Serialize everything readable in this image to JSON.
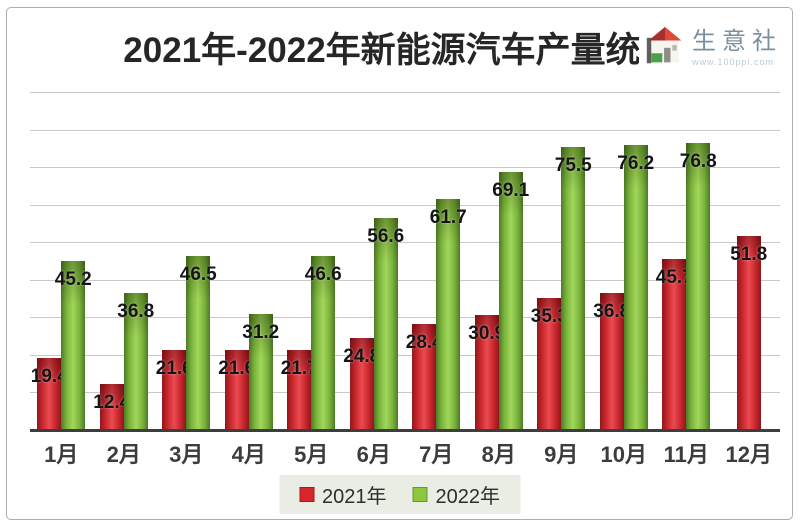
{
  "header": {
    "title": "2021年-2022年新能源汽车产量统计"
  },
  "logo": {
    "name": "生意社",
    "tagline": "www.100ppi.com"
  },
  "legend": {
    "items": [
      {
        "label": "2021年",
        "color": "#d8262c"
      },
      {
        "label": "2022年",
        "color": "#8dc63f"
      }
    ]
  },
  "chart_data": {
    "type": "bar",
    "title": "2021年-2022年新能源汽车产量统计",
    "categories": [
      "1月",
      "2月",
      "3月",
      "4月",
      "5月",
      "6月",
      "7月",
      "8月",
      "9月",
      "10月",
      "11月",
      "12月"
    ],
    "series": [
      {
        "name": "2021年",
        "color": "#d8262c",
        "values": [
          19.4,
          12.4,
          21.6,
          21.6,
          21.7,
          24.8,
          28.4,
          30.9,
          35.3,
          36.8,
          45.7,
          51.8
        ]
      },
      {
        "name": "2022年",
        "color": "#8dc63f",
        "values": [
          45.2,
          36.8,
          46.5,
          31.2,
          46.6,
          56.6,
          61.7,
          69.1,
          75.5,
          76.2,
          76.8,
          null
        ]
      }
    ],
    "xlabel": "",
    "ylabel": "",
    "ylim": [
      0,
      90
    ],
    "grid_step": 10,
    "grid": true,
    "y_axis_labels_visible": false,
    "legend_position": "bottom",
    "value_label_position": "inside-top"
  },
  "colors": {
    "bar_red": "#d8262c",
    "bar_green": "#8dc63f",
    "gridline": "#c9c9c9",
    "axis_line": "#3d3d3d",
    "title_text": "#262626",
    "legend_bg": "#e9ede3",
    "frame_border": "#aeaeae"
  }
}
